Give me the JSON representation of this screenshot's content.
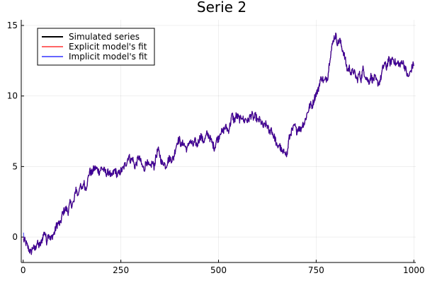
{
  "chart_data": {
    "type": "line",
    "title": "Serie 2",
    "xlabel": "",
    "ylabel": "",
    "xlim": [
      -5,
      1005
    ],
    "ylim": [
      -1.8,
      15.4
    ],
    "grid": true,
    "legend_position": "top-left",
    "x_ticks": [
      0,
      250,
      500,
      750,
      1000
    ],
    "x_tick_labels": [
      "0",
      "250",
      "500",
      "750",
      "1000"
    ],
    "y_ticks": [
      0,
      5,
      10,
      15
    ],
    "y_tick_labels": [
      "0",
      "5",
      "10",
      "15"
    ],
    "n_points": 1000,
    "series": [
      {
        "name": "Simulated series",
        "color": "#000000",
        "opacity": 1.0,
        "start_offset": 0.0
      },
      {
        "name": "Explicit model's fit",
        "color": "#ff0000",
        "opacity": 0.6,
        "start_offset": 0.15
      },
      {
        "name": "Implicit model's fit",
        "color": "#0000ff",
        "opacity": 0.6,
        "start_offset": 0.45
      }
    ],
    "anchors": [
      [
        0,
        -0.2
      ],
      [
        5,
        -0.3
      ],
      [
        10,
        -0.6
      ],
      [
        15,
        -0.9
      ],
      [
        20,
        -1.1
      ],
      [
        25,
        -0.7
      ],
      [
        30,
        -0.9
      ],
      [
        35,
        -0.4
      ],
      [
        40,
        -0.6
      ],
      [
        45,
        -0.5
      ],
      [
        50,
        0.0
      ],
      [
        55,
        0.4
      ],
      [
        60,
        -0.3
      ],
      [
        65,
        0.3
      ],
      [
        70,
        -0.2
      ],
      [
        75,
        0.1
      ],
      [
        80,
        0.3
      ],
      [
        85,
        0.8
      ],
      [
        90,
        1.0
      ],
      [
        95,
        0.9
      ],
      [
        100,
        1.6
      ],
      [
        105,
        1.9
      ],
      [
        110,
        2.0
      ],
      [
        115,
        1.8
      ],
      [
        120,
        2.4
      ],
      [
        125,
        2.3
      ],
      [
        130,
        2.5
      ],
      [
        135,
        3.5
      ],
      [
        140,
        2.9
      ],
      [
        145,
        3.7
      ],
      [
        150,
        3.3
      ],
      [
        155,
        3.9
      ],
      [
        160,
        3.4
      ],
      [
        165,
        4.0
      ],
      [
        170,
        4.7
      ],
      [
        175,
        4.5
      ],
      [
        180,
        4.8
      ],
      [
        185,
        4.9
      ],
      [
        190,
        4.8
      ],
      [
        195,
        4.6
      ],
      [
        200,
        4.9
      ],
      [
        205,
        4.8
      ],
      [
        210,
        4.6
      ],
      [
        215,
        4.5
      ],
      [
        220,
        4.7
      ],
      [
        225,
        4.2
      ],
      [
        230,
        4.5
      ],
      [
        235,
        4.8
      ],
      [
        240,
        4.4
      ],
      [
        245,
        4.5
      ],
      [
        250,
        4.7
      ],
      [
        255,
        4.8
      ],
      [
        260,
        5.1
      ],
      [
        265,
        5.3
      ],
      [
        270,
        5.8
      ],
      [
        275,
        5.4
      ],
      [
        280,
        5.6
      ],
      [
        285,
        5.0
      ],
      [
        290,
        5.2
      ],
      [
        295,
        5.7
      ],
      [
        300,
        5.4
      ],
      [
        305,
        5.0
      ],
      [
        310,
        4.8
      ],
      [
        315,
        5.4
      ],
      [
        320,
        5.1
      ],
      [
        325,
        4.9
      ],
      [
        330,
        5.3
      ],
      [
        335,
        5.0
      ],
      [
        340,
        5.7
      ],
      [
        345,
        6.2
      ],
      [
        350,
        5.8
      ],
      [
        355,
        5.2
      ],
      [
        360,
        5.3
      ],
      [
        365,
        5.0
      ],
      [
        370,
        5.4
      ],
      [
        375,
        5.6
      ],
      [
        380,
        5.5
      ],
      [
        385,
        5.6
      ],
      [
        390,
        6.3
      ],
      [
        395,
        6.8
      ],
      [
        400,
        6.9
      ],
      [
        405,
        6.5
      ],
      [
        410,
        6.7
      ],
      [
        415,
        6.4
      ],
      [
        420,
        6.2
      ],
      [
        425,
        6.8
      ],
      [
        430,
        6.7
      ],
      [
        435,
        6.5
      ],
      [
        440,
        6.8
      ],
      [
        445,
        6.5
      ],
      [
        450,
        6.9
      ],
      [
        455,
        7.2
      ],
      [
        460,
        6.8
      ],
      [
        465,
        6.9
      ],
      [
        470,
        7.3
      ],
      [
        475,
        7.2
      ],
      [
        480,
        6.9
      ],
      [
        485,
        6.6
      ],
      [
        490,
        6.3
      ],
      [
        495,
        6.9
      ],
      [
        500,
        7.0
      ],
      [
        505,
        7.5
      ],
      [
        510,
        7.4
      ],
      [
        515,
        7.7
      ],
      [
        520,
        7.8
      ],
      [
        525,
        7.5
      ],
      [
        530,
        8.0
      ],
      [
        535,
        8.7
      ],
      [
        540,
        8.2
      ],
      [
        545,
        8.6
      ],
      [
        550,
        8.5
      ],
      [
        555,
        8.3
      ],
      [
        560,
        8.6
      ],
      [
        565,
        8.2
      ],
      [
        570,
        8.4
      ],
      [
        575,
        8.2
      ],
      [
        580,
        8.5
      ],
      [
        585,
        8.7
      ],
      [
        590,
        8.4
      ],
      [
        595,
        8.6
      ],
      [
        600,
        8.2
      ],
      [
        605,
        8.3
      ],
      [
        610,
        8.1
      ],
      [
        615,
        7.8
      ],
      [
        620,
        8.0
      ],
      [
        625,
        7.9
      ],
      [
        630,
        7.4
      ],
      [
        635,
        7.7
      ],
      [
        640,
        7.2
      ],
      [
        645,
        7.0
      ],
      [
        650,
        6.3
      ],
      [
        655,
        6.6
      ],
      [
        660,
        6.2
      ],
      [
        665,
        5.9
      ],
      [
        670,
        6.2
      ],
      [
        675,
        5.7
      ],
      [
        680,
        6.9
      ],
      [
        685,
        7.4
      ],
      [
        690,
        7.6
      ],
      [
        695,
        7.9
      ],
      [
        700,
        7.5
      ],
      [
        705,
        7.8
      ],
      [
        710,
        7.6
      ],
      [
        715,
        8.0
      ],
      [
        720,
        8.1
      ],
      [
        725,
        8.6
      ],
      [
        730,
        9.0
      ],
      [
        735,
        9.4
      ],
      [
        740,
        9.3
      ],
      [
        745,
        9.8
      ],
      [
        750,
        10.2
      ],
      [
        755,
        10.4
      ],
      [
        760,
        11.1
      ],
      [
        765,
        11.3
      ],
      [
        770,
        11.0
      ],
      [
        775,
        11.2
      ],
      [
        780,
        11.4
      ],
      [
        785,
        12.7
      ],
      [
        790,
        13.4
      ],
      [
        795,
        14.1
      ],
      [
        800,
        14.3
      ],
      [
        805,
        13.7
      ],
      [
        810,
        14.0
      ],
      [
        815,
        13.5
      ],
      [
        820,
        13.1
      ],
      [
        825,
        12.5
      ],
      [
        830,
        11.8
      ],
      [
        835,
        12.0
      ],
      [
        840,
        11.6
      ],
      [
        845,
        11.8
      ],
      [
        850,
        11.5
      ],
      [
        855,
        11.1
      ],
      [
        860,
        11.6
      ],
      [
        865,
        11.2
      ],
      [
        870,
        11.9
      ],
      [
        875,
        11.5
      ],
      [
        880,
        11.2
      ],
      [
        885,
        11.0
      ],
      [
        890,
        11.4
      ],
      [
        895,
        11.1
      ],
      [
        900,
        11.3
      ],
      [
        905,
        11.0
      ],
      [
        910,
        10.9
      ],
      [
        915,
        11.2
      ],
      [
        920,
        11.9
      ],
      [
        925,
        12.3
      ],
      [
        930,
        12.0
      ],
      [
        935,
        12.6
      ],
      [
        940,
        12.3
      ],
      [
        945,
        12.7
      ],
      [
        950,
        12.5
      ],
      [
        955,
        12.2
      ],
      [
        960,
        12.4
      ],
      [
        965,
        12.1
      ],
      [
        970,
        12.5
      ],
      [
        975,
        12.2
      ],
      [
        980,
        11.8
      ],
      [
        985,
        11.3
      ],
      [
        990,
        11.6
      ],
      [
        995,
        12.0
      ],
      [
        1000,
        12.3
      ]
    ]
  }
}
